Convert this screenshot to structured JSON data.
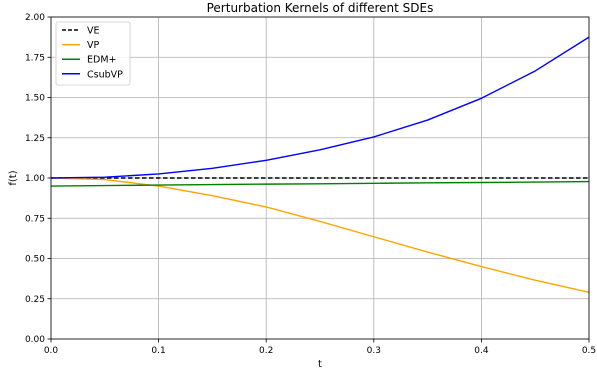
{
  "chart_data": {
    "type": "line",
    "title": "Perturbation Kernels of different SDEs",
    "xlabel": "t",
    "ylabel": "f(t)",
    "xlim": [
      0.0,
      0.5
    ],
    "ylim": [
      0.0,
      2.0
    ],
    "x_ticks": [
      "0.0",
      "0.1",
      "0.2",
      "0.3",
      "0.4",
      "0.5"
    ],
    "y_ticks": [
      "0.00",
      "0.25",
      "0.50",
      "0.75",
      "1.00",
      "1.25",
      "1.50",
      "1.75",
      "2.00"
    ],
    "grid": true,
    "legend_position": "top-left",
    "x": [
      0.0,
      0.05,
      0.1,
      0.15,
      0.2,
      0.25,
      0.3,
      0.35,
      0.4,
      0.45,
      0.5
    ],
    "series": [
      {
        "name": "VE",
        "color": "#000000",
        "dash": "dashed",
        "values": [
          1.0,
          1.0,
          1.0,
          1.0,
          1.0,
          1.0,
          1.0,
          1.0,
          1.0,
          1.0,
          1.0
        ]
      },
      {
        "name": "VP",
        "color": "#ffa500",
        "dash": "solid",
        "values": [
          1.0,
          0.99,
          0.95,
          0.89,
          0.82,
          0.73,
          0.635,
          0.54,
          0.45,
          0.365,
          0.29
        ]
      },
      {
        "name": "EDM+",
        "color": "#008000",
        "dash": "solid",
        "values": [
          0.95,
          0.953,
          0.956,
          0.959,
          0.962,
          0.964,
          0.967,
          0.97,
          0.972,
          0.975,
          0.978
        ]
      },
      {
        "name": "CsubVP",
        "color": "#0000ff",
        "dash": "solid",
        "values": [
          1.0,
          1.005,
          1.025,
          1.06,
          1.11,
          1.175,
          1.255,
          1.36,
          1.495,
          1.665,
          1.875
        ]
      }
    ]
  }
}
